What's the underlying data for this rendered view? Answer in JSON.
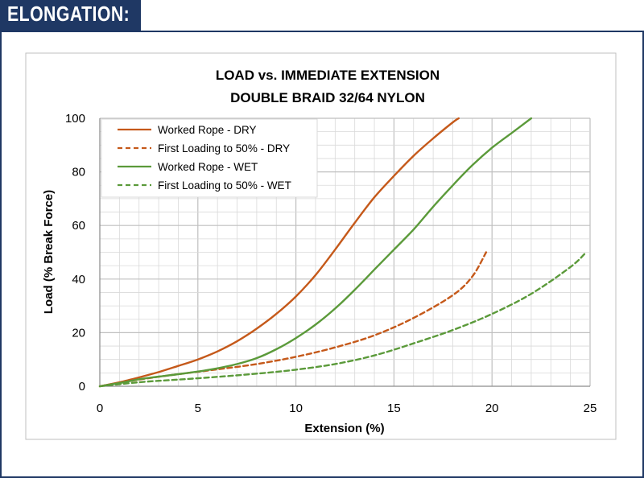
{
  "header": {
    "title": "ELONGATION:"
  },
  "colors": {
    "banner": "#1f3864",
    "dry": "#c5591a",
    "wet": "#5b9a3a",
    "grid": "#d9d9d9"
  },
  "chart_data": {
    "type": "line",
    "title": "LOAD vs. IMMEDIATE EXTENSION",
    "subtitle": "DOUBLE BRAID 32/64 NYLON",
    "xlabel": "Extension (%)",
    "ylabel": "Load (% Break Force)",
    "xlim": [
      0,
      25
    ],
    "ylim": [
      0,
      100
    ],
    "xticks": [
      0,
      5,
      10,
      15,
      20,
      25
    ],
    "yticks": [
      0,
      20,
      40,
      60,
      80,
      100
    ],
    "grid": true,
    "legend": "top-left",
    "series": [
      {
        "name": "Worked Rope - DRY",
        "color": "#c5591a",
        "dash": "solid",
        "points": [
          [
            0,
            0
          ],
          [
            1,
            1.5
          ],
          [
            2,
            3.3
          ],
          [
            3,
            5.3
          ],
          [
            4,
            7.6
          ],
          [
            5,
            10
          ],
          [
            6,
            13
          ],
          [
            7,
            16.8
          ],
          [
            8,
            21.5
          ],
          [
            9,
            27
          ],
          [
            10,
            33.5
          ],
          [
            11,
            41.5
          ],
          [
            12,
            51
          ],
          [
            13,
            61
          ],
          [
            14,
            70.5
          ],
          [
            15,
            78.5
          ],
          [
            16,
            86
          ],
          [
            17,
            92.5
          ],
          [
            18,
            98.5
          ],
          [
            18.3,
            100
          ]
        ]
      },
      {
        "name": "First Loading to 50% - DRY",
        "color": "#c5591a",
        "dash": "dashed",
        "points": [
          [
            0,
            0
          ],
          [
            2,
            2.5
          ],
          [
            4,
            4.5
          ],
          [
            6,
            6.3
          ],
          [
            8,
            8.3
          ],
          [
            10,
            11
          ],
          [
            12,
            14.5
          ],
          [
            14,
            19
          ],
          [
            16,
            25.5
          ],
          [
            18,
            34
          ],
          [
            19,
            41
          ],
          [
            19.7,
            50
          ]
        ]
      },
      {
        "name": "Worked Rope - WET",
        "color": "#5b9a3a",
        "dash": "solid",
        "points": [
          [
            0,
            0
          ],
          [
            1,
            1.2
          ],
          [
            2,
            2.6
          ],
          [
            3,
            3.6
          ],
          [
            4,
            4.5
          ],
          [
            5,
            5.5
          ],
          [
            6,
            6.7
          ],
          [
            7,
            8.3
          ],
          [
            8,
            10.5
          ],
          [
            9,
            13.8
          ],
          [
            10,
            18
          ],
          [
            11,
            23
          ],
          [
            12,
            29
          ],
          [
            13,
            36
          ],
          [
            14,
            43.5
          ],
          [
            15,
            51
          ],
          [
            16,
            58.5
          ],
          [
            17,
            67
          ],
          [
            18,
            75
          ],
          [
            19,
            82.5
          ],
          [
            20,
            89
          ],
          [
            21,
            94.5
          ],
          [
            22,
            100
          ]
        ]
      },
      {
        "name": "First Loading to 50% - WET",
        "color": "#5b9a3a",
        "dash": "dashed",
        "points": [
          [
            0,
            0
          ],
          [
            2,
            1.5
          ],
          [
            4,
            2.5
          ],
          [
            6,
            3.5
          ],
          [
            8,
            4.7
          ],
          [
            10,
            6.2
          ],
          [
            12,
            8.3
          ],
          [
            14,
            11.5
          ],
          [
            16,
            16
          ],
          [
            18,
            21
          ],
          [
            20,
            27
          ],
          [
            22,
            34.5
          ],
          [
            24,
            44.5
          ],
          [
            24.8,
            50
          ]
        ]
      }
    ]
  }
}
